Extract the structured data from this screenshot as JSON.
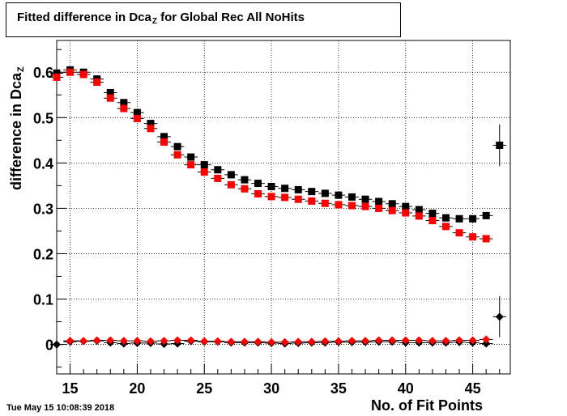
{
  "chart_data": {
    "type": "scatter",
    "title": "Fitted difference in Dca",
    "title_sub": "Z",
    "title_rest": " for Global Rec All NoHits",
    "xlabel": "No. of Fit Points",
    "ylabel": "difference in Dca",
    "ylabel_sub": "Z",
    "xlim": [
      14,
      47.8
    ],
    "ylim": [
      -0.065,
      0.67
    ],
    "x_ticks": [
      15,
      20,
      25,
      30,
      35,
      40,
      45
    ],
    "y_ticks": [
      0,
      0.1,
      0.2,
      0.3,
      0.4,
      0.5,
      0.6
    ],
    "y_tick_labels": [
      "0",
      "0.1",
      "0.2",
      "0.3",
      "0.4",
      "0.5",
      "0.6"
    ],
    "grid": true,
    "series": [
      {
        "marker": "square",
        "color": "#000000",
        "x": [
          14,
          15,
          16,
          17,
          18,
          19,
          20,
          21,
          22,
          23,
          24,
          25,
          26,
          27,
          28,
          29,
          30,
          31,
          32,
          33,
          34,
          35,
          36,
          37,
          38,
          39,
          40,
          41,
          42,
          43,
          44,
          45,
          46,
          47
        ],
        "y": [
          0.598,
          0.605,
          0.6,
          0.585,
          0.555,
          0.533,
          0.511,
          0.487,
          0.458,
          0.436,
          0.413,
          0.396,
          0.385,
          0.374,
          0.363,
          0.355,
          0.348,
          0.344,
          0.341,
          0.337,
          0.333,
          0.329,
          0.325,
          0.32,
          0.315,
          0.31,
          0.304,
          0.297,
          0.289,
          0.279,
          0.277,
          0.277,
          0.284,
          0.439
        ],
        "yerr": [
          0,
          0,
          0,
          0,
          0,
          0,
          0,
          0,
          0,
          0,
          0,
          0,
          0,
          0,
          0,
          0,
          0,
          0,
          0,
          0,
          0,
          0,
          0,
          0,
          0,
          0,
          0,
          0,
          0,
          0,
          0,
          0,
          0,
          0.046
        ]
      },
      {
        "marker": "square",
        "color": "#ff0000",
        "x": [
          14,
          15,
          16,
          17,
          18,
          19,
          20,
          21,
          22,
          23,
          24,
          25,
          26,
          27,
          28,
          29,
          30,
          31,
          32,
          33,
          34,
          35,
          36,
          37,
          38,
          39,
          40,
          41,
          42,
          43,
          44,
          45,
          46
        ],
        "y": [
          0.589,
          0.6,
          0.595,
          0.578,
          0.543,
          0.52,
          0.498,
          0.476,
          0.446,
          0.418,
          0.396,
          0.38,
          0.366,
          0.352,
          0.343,
          0.332,
          0.326,
          0.324,
          0.32,
          0.316,
          0.311,
          0.308,
          0.306,
          0.304,
          0.3,
          0.295,
          0.29,
          0.283,
          0.273,
          0.26,
          0.246,
          0.237,
          0.233
        ],
        "yerr": []
      },
      {
        "marker": "diamond",
        "color": "#000000",
        "x": [
          14,
          15,
          16,
          17,
          18,
          19,
          20,
          21,
          22,
          23,
          24,
          25,
          26,
          27,
          28,
          29,
          30,
          31,
          32,
          33,
          34,
          35,
          36,
          37,
          38,
          39,
          40,
          41,
          42,
          43,
          44,
          45,
          46,
          47
        ],
        "y": [
          0.0,
          0.006,
          0.007,
          0.008,
          0.004,
          0.002,
          0.003,
          0.003,
          0.001,
          0.002,
          0.007,
          0.006,
          0.006,
          0.004,
          0.004,
          0.004,
          0.003,
          0.002,
          0.003,
          0.004,
          0.004,
          0.005,
          0.005,
          0.005,
          0.006,
          0.006,
          0.004,
          0.004,
          0.004,
          0.004,
          0.005,
          0.004,
          0.002,
          0.061
        ],
        "yerr": [
          0,
          0,
          0,
          0,
          0,
          0,
          0,
          0,
          0,
          0,
          0,
          0,
          0,
          0,
          0,
          0,
          0,
          0,
          0,
          0,
          0,
          0,
          0,
          0,
          0,
          0,
          0,
          0,
          0,
          0,
          0,
          0,
          0,
          0.045
        ]
      },
      {
        "marker": "diamond",
        "color": "#ff0000",
        "x": [
          15,
          16,
          17,
          18,
          19,
          20,
          21,
          22,
          23,
          24,
          25,
          26,
          27,
          28,
          29,
          30,
          31,
          32,
          33,
          34,
          35,
          36,
          37,
          38,
          39,
          40,
          41,
          42,
          43,
          44,
          45,
          46
        ],
        "y": [
          0.008,
          0.008,
          0.009,
          0.009,
          0.008,
          0.008,
          0.007,
          0.008,
          0.009,
          0.009,
          0.007,
          0.007,
          0.006,
          0.006,
          0.006,
          0.005,
          0.005,
          0.006,
          0.006,
          0.007,
          0.007,
          0.008,
          0.008,
          0.009,
          0.009,
          0.009,
          0.009,
          0.008,
          0.008,
          0.009,
          0.009,
          0.011
        ],
        "yerr": []
      }
    ]
  },
  "footer": {
    "timestamp": "Tue May 15 10:08:39 2018"
  }
}
